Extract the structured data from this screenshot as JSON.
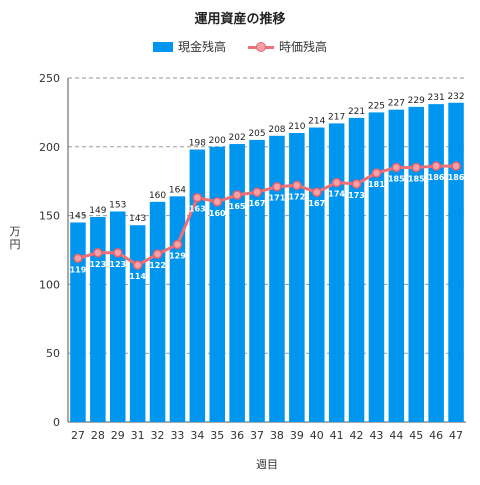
{
  "chart_data": {
    "type": "bar",
    "title": "運用資産の推移",
    "xlabel": "週目",
    "ylabel": "万円",
    "ylim": [
      0,
      250
    ],
    "yticks": [
      0,
      50,
      100,
      150,
      200,
      250
    ],
    "grid": true,
    "legend_position": "top",
    "categories": [
      "27",
      "28",
      "29",
      "31",
      "32",
      "33",
      "34",
      "35",
      "36",
      "37",
      "38",
      "39",
      "40",
      "41",
      "42",
      "43",
      "44",
      "45",
      "46",
      "47"
    ],
    "series": [
      {
        "name": "現金残高",
        "type": "bar",
        "color": "#0096f0",
        "values": [
          145,
          149,
          153,
          143,
          160,
          164,
          198,
          200,
          202,
          205,
          208,
          210,
          214,
          217,
          221,
          225,
          227,
          229,
          231,
          232
        ]
      },
      {
        "name": "時価残高",
        "type": "line",
        "color": "#f07078",
        "values": [
          119,
          123,
          123,
          114,
          122,
          129,
          163,
          160,
          165,
          167,
          171,
          172,
          167,
          174,
          173,
          181,
          185,
          185,
          186,
          186
        ]
      }
    ]
  }
}
